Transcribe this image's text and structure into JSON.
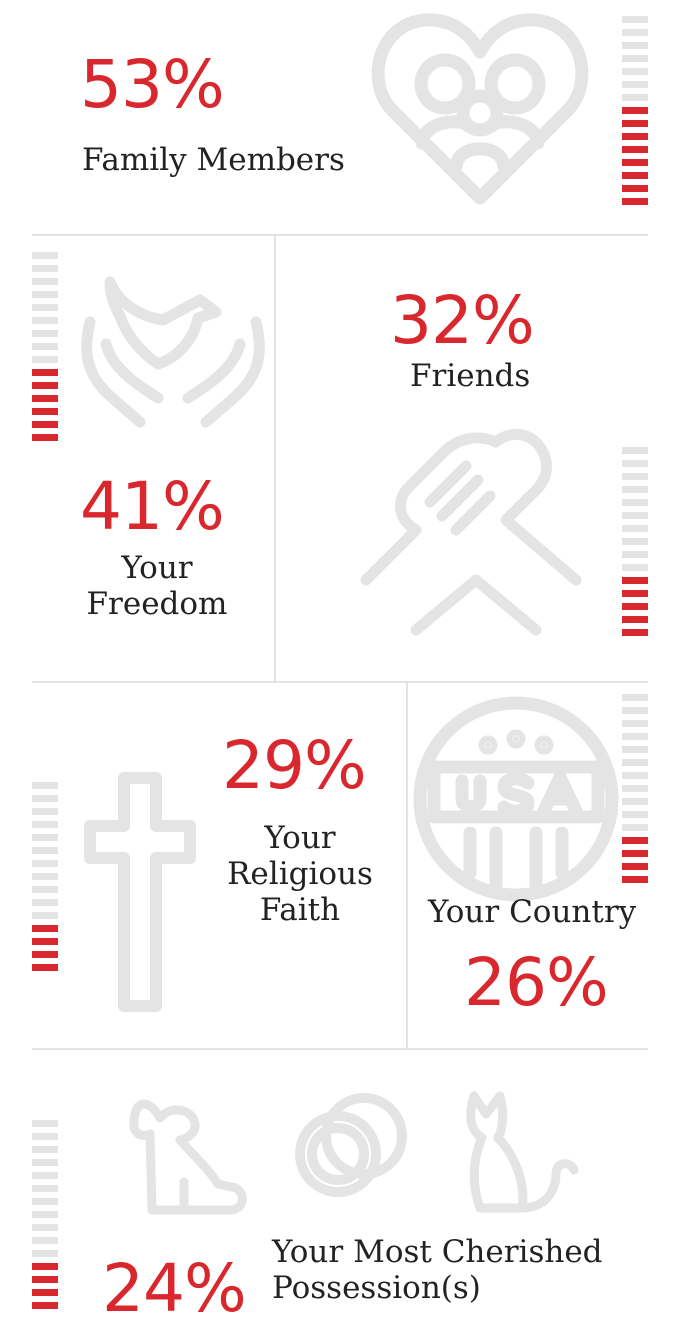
{
  "colors": {
    "accent": "#d9272e",
    "icon": "#e4e4e4",
    "meter_off": "#e4e4e4",
    "divider": "#e3e3e3",
    "text": "#222222"
  },
  "chart_data": {
    "type": "bar",
    "categories": [
      "Family Members",
      "Friends",
      "Your Freedom",
      "Your Religious Faith",
      "Your Country",
      "Your Most Cherished Possession(s)"
    ],
    "values": [
      53,
      32,
      41,
      29,
      26,
      24
    ],
    "unit": "%",
    "ylim": [
      0,
      100
    ],
    "legend": "none",
    "grid": false
  },
  "items": [
    {
      "id": "family",
      "value_label": "53%",
      "label_lines": [
        "Family Members"
      ],
      "value": 53,
      "icon": "family-heart-icon"
    },
    {
      "id": "friends",
      "value_label": "32%",
      "label_lines": [
        "Friends"
      ],
      "value": 32,
      "icon": "handshake-icon"
    },
    {
      "id": "freedom",
      "value_label": "41%",
      "label_lines": [
        "Your",
        "Freedom"
      ],
      "value": 41,
      "icon": "dove-hands-icon"
    },
    {
      "id": "faith",
      "value_label": "29%",
      "label_lines": [
        "Your",
        "Religious",
        "Faith"
      ],
      "value": 29,
      "icon": "cross-icon"
    },
    {
      "id": "country",
      "value_label": "26%",
      "label_lines": [
        "Your Country"
      ],
      "value": 26,
      "icon": "usa-badge-icon"
    },
    {
      "id": "possessions",
      "value_label": "24%",
      "label_lines": [
        "Your Most Cherished",
        "Possession(s)"
      ],
      "value": 24,
      "icon": "dog-rings-cat-icon"
    }
  ]
}
